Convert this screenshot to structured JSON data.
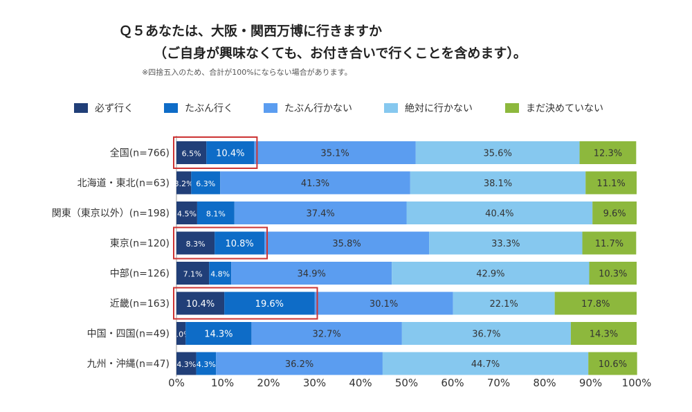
{
  "title_line1": "Ｑ５あなたは、大阪・関西万博に行きますか",
  "title_line2": "（ご自身が興味なくても、お付き合いで行くことを含めます）。",
  "note": "※四捨五入のため、合計が100%にならない場合があります。",
  "chart_data": {
    "type": "bar",
    "orientation": "horizontal-stacked-100",
    "categories": [
      "全国(n=766)",
      "北海道・東北(n=63)",
      "関東（東京以外）(n=198)",
      "東京(n=120)",
      "中部(n=126)",
      "近畿(n=163)",
      "中国・四国(n=49)",
      "九州・沖縄(n=47)"
    ],
    "series": [
      {
        "name": "必ず行く",
        "color": "#213f78",
        "values": [
          6.5,
          3.2,
          4.5,
          8.3,
          7.1,
          10.4,
          2.0,
          4.3
        ]
      },
      {
        "name": "たぶん行く",
        "color": "#0e6cc7",
        "values": [
          10.4,
          6.3,
          8.1,
          10.8,
          4.8,
          19.6,
          14.3,
          4.3
        ]
      },
      {
        "name": "たぶん行かない",
        "color": "#5b9df0",
        "values": [
          35.1,
          41.3,
          37.4,
          35.8,
          34.9,
          30.1,
          32.7,
          36.2
        ]
      },
      {
        "name": "絶対に行かない",
        "color": "#86c8ef",
        "values": [
          35.6,
          38.1,
          40.4,
          33.3,
          42.9,
          22.1,
          36.7,
          44.7
        ]
      },
      {
        "name": "まだ決めていない",
        "color": "#8db83d",
        "values": [
          12.3,
          11.1,
          9.6,
          11.7,
          10.3,
          17.8,
          14.3,
          10.6
        ]
      }
    ],
    "xlim": [
      0,
      100
    ],
    "x_ticks": [
      "0%",
      "10%",
      "20%",
      "30%",
      "40%",
      "50%",
      "60%",
      "70%",
      "80%",
      "90%",
      "100%"
    ],
    "legend_position": "top",
    "highlighted_rows": [
      "全国(n=766)",
      "東京(n=120)",
      "近畿(n=163)"
    ],
    "highlight_color": "#cc3333"
  }
}
